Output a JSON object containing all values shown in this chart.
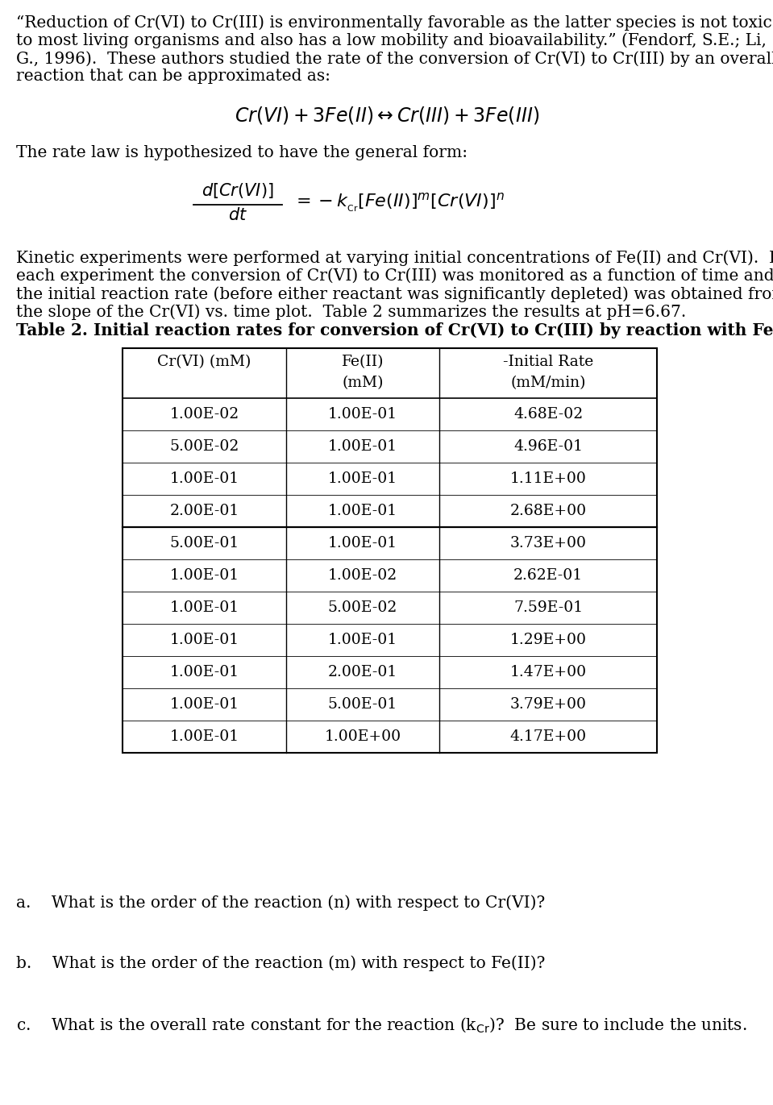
{
  "bg_color": "#ffffff",
  "text_color": "#000000",
  "paragraph1_lines": [
    "“Reduction of Cr(VI) to Cr(III) is environmentally favorable as the latter species is not toxic",
    "to most living organisms and also has a low mobility and bioavailability.” (Fendorf, S.E.; Li,",
    "G., 1996).  These authors studied the rate of the conversion of Cr(VI) to Cr(III) by an overall",
    "reaction that can be approximated as:"
  ],
  "paragraph2_lines": [
    "Kinetic experiments were performed at varying initial concentrations of Fe(II) and Cr(VI).  In",
    "each experiment the conversion of Cr(VI) to Cr(III) was monitored as a function of time and",
    "the initial reaction rate (before either reactant was significantly depleted) was obtained from",
    "the slope of the Cr(VI) vs. time plot.  Table 2 summarizes the results at pH=6.67."
  ],
  "table_title": "Table 2. Initial reaction rates for conversion of Cr(VI) to Cr(III) by reaction with Fe(II)",
  "table_data": [
    [
      "1.00E-02",
      "1.00E-01",
      "4.68E-02"
    ],
    [
      "5.00E-02",
      "1.00E-01",
      "4.96E-01"
    ],
    [
      "1.00E-01",
      "1.00E-01",
      "1.11E+00"
    ],
    [
      "2.00E-01",
      "1.00E-01",
      "2.68E+00"
    ],
    [
      "5.00E-01",
      "1.00E-01",
      "3.73E+00"
    ],
    [
      "1.00E-01",
      "1.00E-02",
      "2.62E-01"
    ],
    [
      "1.00E-01",
      "5.00E-02",
      "7.59E-01"
    ],
    [
      "1.00E-01",
      "1.00E-01",
      "1.29E+00"
    ],
    [
      "1.00E-01",
      "2.00E-01",
      "1.47E+00"
    ],
    [
      "1.00E-01",
      "5.00E-01",
      "3.79E+00"
    ],
    [
      "1.00E-01",
      "1.00E+00",
      "4.17E+00"
    ]
  ],
  "group_separator_after_row": 4,
  "body_fontsize": 14.5,
  "table_fontsize": 13.5,
  "title_fontsize": 14.5
}
